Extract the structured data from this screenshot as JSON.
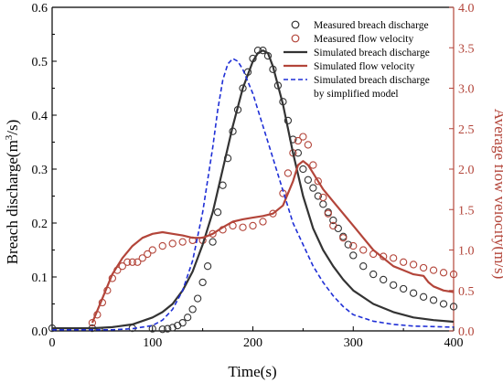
{
  "chart_data": {
    "type": "line",
    "title": "",
    "xlabel": "Time(s)",
    "ylabel_left": "Breach discharge(m³/s)",
    "ylabel_left_main": "Breach discharge(m",
    "ylabel_left_sup": "3",
    "ylabel_left_end": "/s)",
    "ylabel_right": "Average flow velocity(m/s)",
    "xlim": [
      0,
      400
    ],
    "ylim_left": [
      0,
      0.6
    ],
    "ylim_right": [
      0,
      4.0
    ],
    "xticks": [
      "0",
      "100",
      "200",
      "300",
      "400"
    ],
    "yticks_left": [
      "0.0",
      "0.1",
      "0.2",
      "0.3",
      "0.4",
      "0.5",
      "0.6"
    ],
    "yticks_right": [
      "0.0",
      "0.5",
      "1.0",
      "1.5",
      "2.0",
      "2.5",
      "3.0",
      "3.5",
      "4.0"
    ],
    "grid": false,
    "legend_position": "top-right",
    "colors": {
      "discharge": "#333333",
      "velocity": "#b3453a",
      "simplified": "#1f2fd6"
    },
    "series": [
      {
        "name": "Measured breach discharge",
        "axis": "left",
        "style": "circle-marker",
        "color": "#333333",
        "x": [
          0,
          40,
          80,
          100,
          110,
          115,
          120,
          125,
          130,
          135,
          140,
          145,
          150,
          155,
          160,
          165,
          170,
          175,
          180,
          185,
          190,
          195,
          200,
          205,
          210,
          215,
          220,
          225,
          230,
          235,
          240,
          245,
          250,
          255,
          260,
          265,
          270,
          275,
          280,
          285,
          290,
          295,
          300,
          310,
          320,
          330,
          340,
          350,
          360,
          370,
          380,
          390,
          400
        ],
        "y": [
          0.005,
          0.005,
          0.005,
          0.004,
          0.003,
          0.004,
          0.006,
          0.01,
          0.015,
          0.025,
          0.04,
          0.06,
          0.09,
          0.12,
          0.165,
          0.22,
          0.27,
          0.32,
          0.37,
          0.41,
          0.45,
          0.48,
          0.505,
          0.52,
          0.52,
          0.51,
          0.485,
          0.455,
          0.425,
          0.39,
          0.355,
          0.33,
          0.3,
          0.28,
          0.265,
          0.25,
          0.235,
          0.22,
          0.205,
          0.19,
          0.175,
          0.16,
          0.14,
          0.12,
          0.105,
          0.095,
          0.085,
          0.078,
          0.07,
          0.063,
          0.057,
          0.05,
          0.045
        ]
      },
      {
        "name": "Measured flow velocity",
        "axis": "right",
        "style": "circle-marker",
        "color": "#b3453a",
        "x": [
          40,
          45,
          50,
          55,
          60,
          65,
          70,
          75,
          80,
          85,
          90,
          95,
          100,
          110,
          120,
          130,
          140,
          150,
          160,
          170,
          180,
          190,
          200,
          210,
          220,
          230,
          235,
          240,
          245,
          250,
          255,
          260,
          265,
          270,
          275,
          280,
          290,
          300,
          310,
          320,
          330,
          340,
          350,
          360,
          370,
          380,
          390,
          400
        ],
        "y": [
          0.1,
          0.2,
          0.35,
          0.5,
          0.65,
          0.75,
          0.8,
          0.85,
          0.85,
          0.85,
          0.9,
          0.95,
          1.0,
          1.05,
          1.08,
          1.1,
          1.12,
          1.12,
          1.2,
          1.25,
          1.3,
          1.28,
          1.3,
          1.35,
          1.45,
          1.7,
          1.95,
          2.2,
          2.35,
          2.4,
          2.3,
          2.05,
          1.85,
          1.65,
          1.45,
          1.3,
          1.15,
          1.05,
          1.0,
          0.95,
          0.92,
          0.9,
          0.85,
          0.82,
          0.78,
          0.75,
          0.72,
          0.7
        ]
      },
      {
        "name": "Simulated breach discharge",
        "axis": "left",
        "style": "solid",
        "color": "#333333",
        "x": [
          0,
          40,
          60,
          80,
          100,
          110,
          120,
          130,
          140,
          150,
          160,
          170,
          180,
          190,
          200,
          205,
          210,
          215,
          220,
          230,
          240,
          250,
          260,
          270,
          280,
          290,
          300,
          320,
          340,
          360,
          380,
          400
        ],
        "y": [
          0.005,
          0.005,
          0.007,
          0.012,
          0.025,
          0.035,
          0.05,
          0.075,
          0.11,
          0.16,
          0.22,
          0.3,
          0.38,
          0.45,
          0.5,
          0.515,
          0.52,
          0.515,
          0.49,
          0.42,
          0.33,
          0.25,
          0.19,
          0.15,
          0.12,
          0.095,
          0.075,
          0.05,
          0.035,
          0.025,
          0.02,
          0.017
        ]
      },
      {
        "name": "Simulated flow velocity",
        "axis": "right",
        "style": "solid",
        "color": "#b3453a",
        "x": [
          40,
          50,
          60,
          70,
          80,
          90,
          100,
          110,
          120,
          130,
          140,
          150,
          160,
          170,
          180,
          190,
          200,
          210,
          220,
          230,
          240,
          245,
          250,
          255,
          260,
          270,
          280,
          290,
          300,
          310,
          320,
          330,
          340,
          350,
          360,
          370,
          375,
          380,
          390,
          400
        ],
        "y": [
          0.1,
          0.4,
          0.7,
          0.9,
          1.05,
          1.15,
          1.2,
          1.22,
          1.2,
          1.18,
          1.15,
          1.15,
          1.2,
          1.28,
          1.35,
          1.38,
          1.4,
          1.42,
          1.45,
          1.55,
          1.85,
          2.05,
          2.1,
          2.05,
          1.95,
          1.75,
          1.6,
          1.45,
          1.3,
          1.15,
          1.0,
          0.9,
          0.8,
          0.75,
          0.7,
          0.68,
          0.6,
          0.55,
          0.5,
          0.48
        ]
      },
      {
        "name": "Simulated breach discharge",
        "legend_line2": "by simplified model",
        "axis": "left",
        "style": "dashed",
        "color": "#1f2fd6",
        "x": [
          0,
          60,
          80,
          100,
          110,
          120,
          130,
          140,
          150,
          160,
          165,
          170,
          175,
          180,
          185,
          190,
          200,
          210,
          220,
          230,
          240,
          250,
          260,
          270,
          280,
          290,
          300,
          320,
          340,
          360,
          380,
          400
        ],
        "y": [
          0.002,
          0.002,
          0.004,
          0.01,
          0.02,
          0.04,
          0.075,
          0.13,
          0.22,
          0.34,
          0.41,
          0.465,
          0.495,
          0.505,
          0.5,
          0.485,
          0.44,
          0.38,
          0.32,
          0.26,
          0.2,
          0.16,
          0.12,
          0.09,
          0.065,
          0.045,
          0.03,
          0.018,
          0.012,
          0.009,
          0.008,
          0.007
        ]
      }
    ]
  }
}
